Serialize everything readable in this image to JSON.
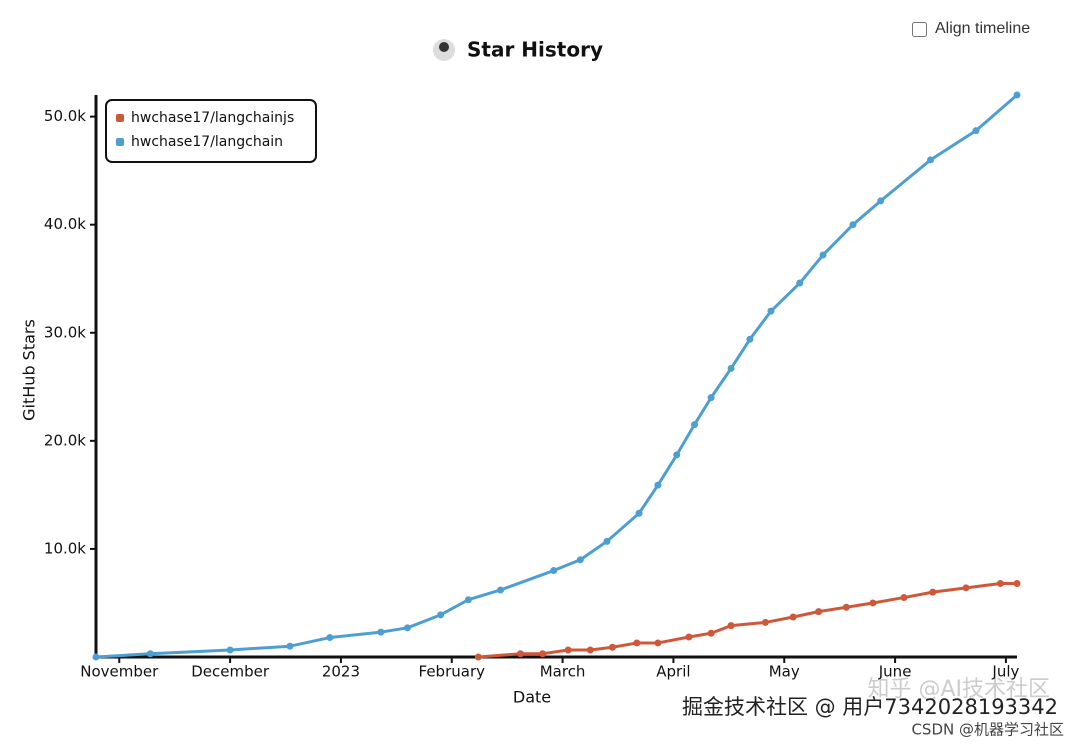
{
  "chart_data": {
    "type": "line",
    "title": "Star History",
    "xlabel": "Date",
    "ylabel": "GitHub Stars",
    "xlim": [
      -0.21,
      8.1
    ],
    "ylim": [
      0,
      52000
    ],
    "xticks": [
      {
        "value": 0,
        "label": "November"
      },
      {
        "value": 1,
        "label": "December"
      },
      {
        "value": 2,
        "label": "2023"
      },
      {
        "value": 3,
        "label": "February"
      },
      {
        "value": 4,
        "label": "March"
      },
      {
        "value": 5,
        "label": "April"
      },
      {
        "value": 6,
        "label": "May"
      },
      {
        "value": 7,
        "label": "June"
      },
      {
        "value": 8,
        "label": "July"
      }
    ],
    "yticks": [
      {
        "value": 10000,
        "label": "10.0k"
      },
      {
        "value": 20000,
        "label": "20.0k"
      },
      {
        "value": 30000,
        "label": "30.0k"
      },
      {
        "value": 40000,
        "label": "40.0k"
      },
      {
        "value": 50000,
        "label": "50.0k"
      }
    ],
    "legend": "top-left",
    "series": [
      {
        "name": "hwchase17/langchainjs",
        "color": "#d0583a",
        "x": [
          3.24,
          3.62,
          3.82,
          4.05,
          4.25,
          4.45,
          4.67,
          4.86,
          5.14,
          5.34,
          5.52,
          5.83,
          6.08,
          6.31,
          6.56,
          6.8,
          7.08,
          7.34,
          7.64,
          7.95,
          8.1
        ],
        "values": [
          0,
          300,
          300,
          650,
          650,
          900,
          1300,
          1300,
          1850,
          2200,
          2900,
          3200,
          3700,
          4200,
          4600,
          5000,
          5500,
          6000,
          6400,
          6800,
          6800
        ]
      },
      {
        "name": "hwchase17/langchain",
        "color": "#4e9fd1",
        "x": [
          -0.21,
          0.28,
          1.0,
          1.54,
          1.9,
          2.36,
          2.6,
          2.9,
          3.15,
          3.44,
          3.92,
          4.16,
          4.4,
          4.69,
          4.86,
          5.03,
          5.19,
          5.34,
          5.52,
          5.69,
          5.88,
          6.14,
          6.35,
          6.62,
          6.87,
          7.32,
          7.73,
          8.1
        ],
        "values": [
          0,
          300,
          650,
          1000,
          1800,
          2300,
          2700,
          3900,
          5300,
          6200,
          8000,
          9000,
          10700,
          13300,
          15900,
          18700,
          21500,
          24000,
          26700,
          29400,
          32000,
          34600,
          37200,
          40000,
          42200,
          46000,
          48700,
          52000
        ]
      }
    ]
  },
  "controls": {
    "align_timeline": "Align timeline"
  },
  "watermarks": [
    "知乎 @AI技术社区",
    "掘金技术社区 @ 用户7342028193342",
    "CSDN @机器学习社区"
  ]
}
